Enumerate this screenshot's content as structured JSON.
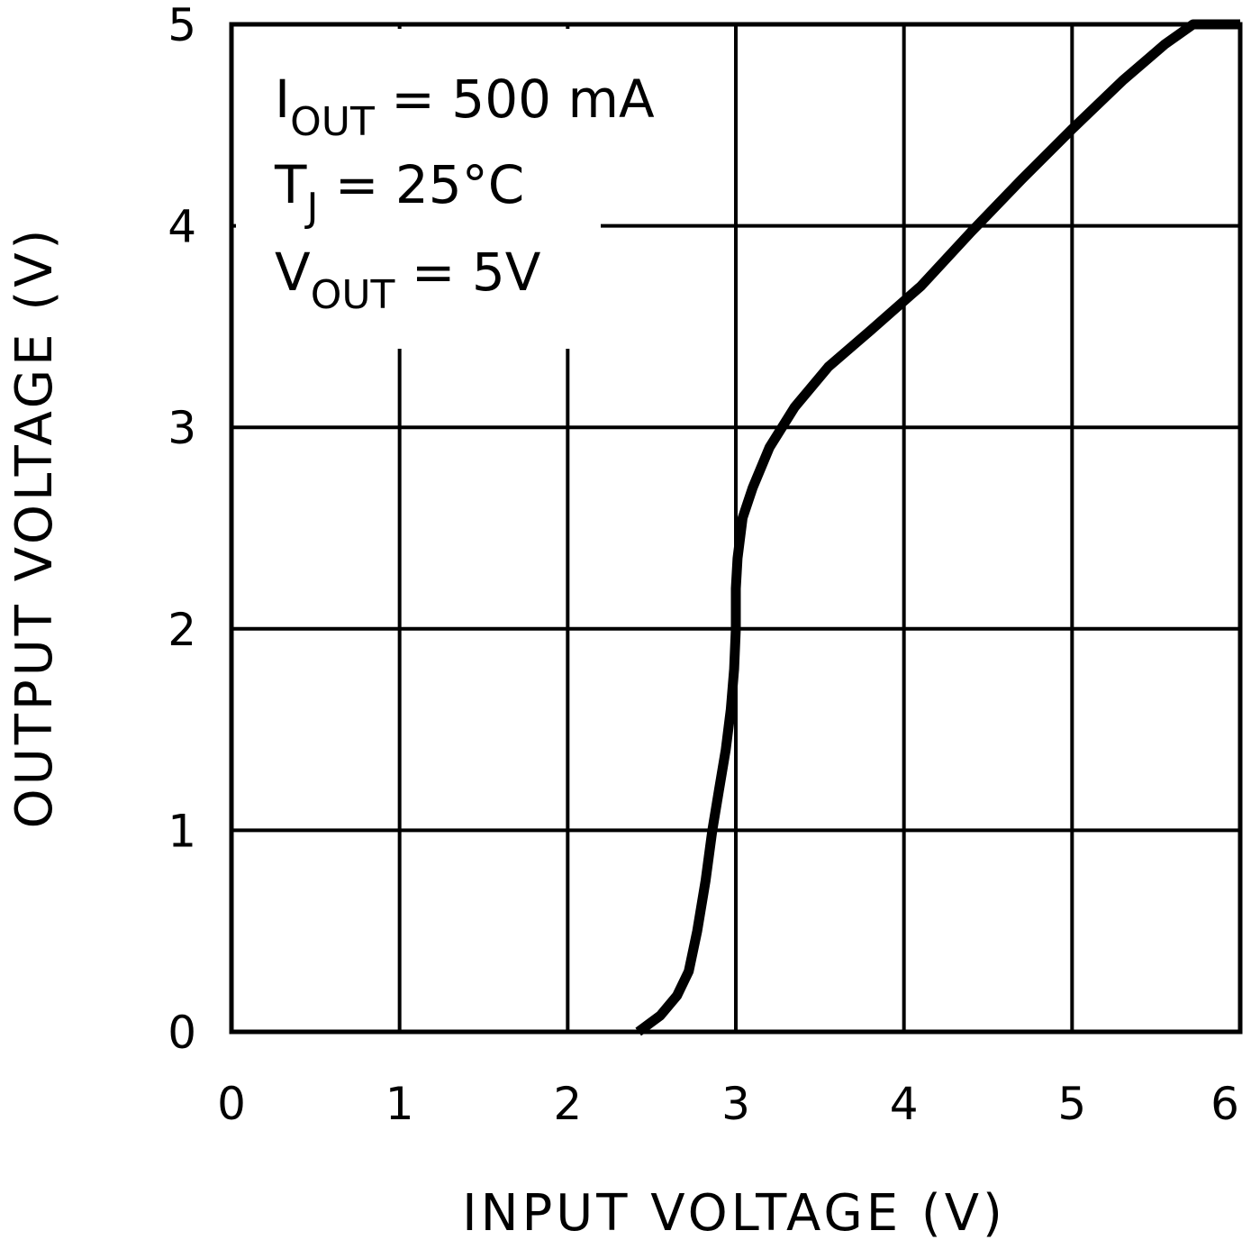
{
  "chart_data": {
    "type": "line",
    "xlabel": "INPUT VOLTAGE (V)",
    "ylabel": "OUTPUT VOLTAGE (V)",
    "xlim": [
      0,
      6
    ],
    "ylim": [
      0,
      5
    ],
    "x_ticks": [
      "0",
      "1",
      "2",
      "3",
      "4",
      "5",
      "6"
    ],
    "y_ticks": [
      "0",
      "1",
      "2",
      "3",
      "4",
      "5"
    ],
    "grid": true,
    "line_color": "#000000",
    "annotations": [
      {
        "main": "I",
        "sub": "OUT",
        "rest": " = 500 mA"
      },
      {
        "main": "T",
        "sub": "J",
        "rest": " = 25°C"
      },
      {
        "main": "V",
        "sub": "OUT",
        "rest": " = 5V"
      }
    ],
    "series": [
      {
        "x": [
          2.42,
          2.55,
          2.65,
          2.72,
          2.77,
          2.82,
          2.86,
          2.9,
          2.94,
          2.97,
          2.99,
          3.0,
          3.0,
          3.01,
          3.04,
          3.1,
          3.2,
          3.35,
          3.55,
          3.8,
          4.1,
          4.4,
          4.7,
          5.0,
          5.3,
          5.55,
          5.72,
          5.8,
          6.0
        ],
        "y": [
          0.0,
          0.08,
          0.18,
          0.3,
          0.5,
          0.75,
          1.0,
          1.2,
          1.4,
          1.6,
          1.8,
          2.0,
          2.2,
          2.35,
          2.55,
          2.7,
          2.9,
          3.1,
          3.3,
          3.48,
          3.7,
          3.97,
          4.23,
          4.48,
          4.72,
          4.9,
          5.0,
          5.0,
          5.0
        ]
      }
    ]
  }
}
